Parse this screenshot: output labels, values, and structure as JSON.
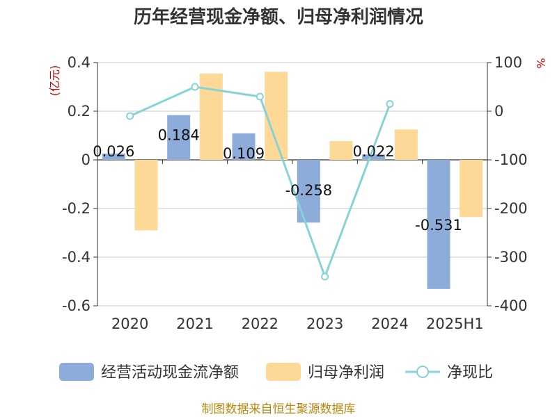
{
  "chart_data": {
    "type": "bar",
    "title": "历年经营现金净额、归母净利润情况",
    "categories": [
      "2020",
      "2021",
      "2022",
      "2023",
      "2024",
      "2025H1"
    ],
    "y_left_unit": "(亿元)",
    "y_right_unit": "%",
    "y_left_ticks": [
      "0.4",
      "0.2",
      "0",
      "-0.2",
      "-0.4",
      "-0.6"
    ],
    "y_right_ticks": [
      "100",
      "0",
      "-100",
      "-200",
      "-300",
      "-400"
    ],
    "ylim_left": [
      -0.6,
      0.4
    ],
    "ylim_right": [
      -400,
      100
    ],
    "grid": true,
    "legend_position": "bottom",
    "series": [
      {
        "name": "经营活动现金流净额",
        "kind": "bar",
        "axis": "left",
        "color": "#8eacd9",
        "values": [
          0.026,
          0.184,
          0.109,
          -0.258,
          0.022,
          -0.531
        ],
        "labels": [
          "0.026",
          "0.184",
          "0.109",
          "-0.258",
          "0.022",
          "-0.531"
        ]
      },
      {
        "name": "归母净利润",
        "kind": "bar",
        "axis": "left",
        "color": "#fdd897",
        "values": [
          -0.29,
          0.355,
          0.362,
          0.077,
          0.125,
          -0.235
        ]
      },
      {
        "name": "净现比",
        "kind": "line",
        "axis": "right",
        "color": "#85d3d6",
        "values": [
          -10,
          50,
          30,
          -340,
          15,
          null
        ]
      }
    ]
  },
  "source_note": "制图数据来自恒生聚源数据库"
}
